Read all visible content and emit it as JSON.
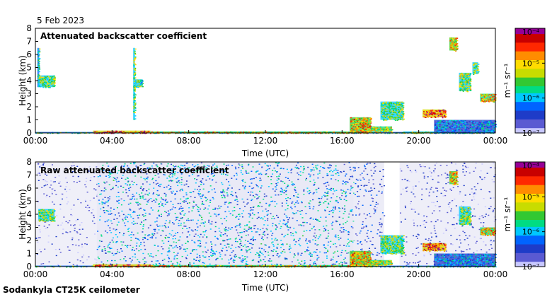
{
  "date": "5 Feb 2023",
  "footer": "Sodankyla CT25K ceilometer",
  "colorscale": [
    "#ffffff",
    "#c8c8ff",
    "#5a5ad2",
    "#1e3cc8",
    "#0064ff",
    "#00c8ff",
    "#00dc82",
    "#32c832",
    "#c8dc00",
    "#ffdc00",
    "#ff8c00",
    "#ff2800",
    "#c80000",
    "#960096"
  ],
  "chart_data": [
    {
      "type": "heatmap",
      "title": "Attenuated backscatter coefficient",
      "xlabel": "Time (UTC)",
      "ylabel": "Height (km)",
      "xticks": [
        "00:00",
        "04:00",
        "08:00",
        "12:00",
        "16:00",
        "20:00",
        "00:00"
      ],
      "yticks": [
        "0",
        "1",
        "2",
        "3",
        "4",
        "5",
        "6",
        "7",
        "8"
      ],
      "xlim": [
        0,
        24
      ],
      "ylim": [
        0,
        8
      ],
      "colorbar": {
        "label": "m⁻¹ sr⁻¹",
        "ticks": [
          "10⁻⁴",
          "10⁻⁵",
          "10⁻⁶",
          "10⁻⁷"
        ],
        "range": [
          -7,
          -4
        ],
        "scale": "log"
      },
      "noise_background": false,
      "features": [
        {
          "t0": 0.0,
          "t1": 24.0,
          "h0": 0.0,
          "h1": 0.08,
          "level": 0.45
        },
        {
          "t0": 3.0,
          "t1": 6.0,
          "h0": 0.0,
          "h1": 0.18,
          "level": 0.88
        },
        {
          "t0": 6.0,
          "t1": 16.4,
          "h0": 0.0,
          "h1": 0.12,
          "level": 0.7
        },
        {
          "t0": 0.1,
          "t1": 0.2,
          "h0": 3.5,
          "h1": 6.5,
          "level": 0.45
        },
        {
          "t0": 0.15,
          "t1": 1.0,
          "h0": 3.5,
          "h1": 4.4,
          "level": 0.55
        },
        {
          "t0": 5.1,
          "t1": 5.2,
          "h0": 1.0,
          "h1": 6.5,
          "level": 0.55
        },
        {
          "t0": 5.2,
          "t1": 5.6,
          "h0": 3.5,
          "h1": 4.1,
          "level": 0.5
        },
        {
          "t0": 16.4,
          "t1": 17.5,
          "h0": 0.0,
          "h1": 1.2,
          "level": 0.72
        },
        {
          "t0": 17.5,
          "t1": 18.6,
          "h0": 0.1,
          "h1": 0.5,
          "level": 0.62
        },
        {
          "t0": 18.0,
          "t1": 19.2,
          "h0": 1.0,
          "h1": 2.4,
          "level": 0.55
        },
        {
          "t0": 19.2,
          "t1": 21.0,
          "h0": 0.0,
          "h1": 0.12,
          "level": 0.6
        },
        {
          "t0": 20.2,
          "t1": 21.4,
          "h0": 1.2,
          "h1": 1.8,
          "level": 0.85
        },
        {
          "t0": 20.8,
          "t1": 24.0,
          "h0": 0.0,
          "h1": 1.0,
          "level": 0.32
        },
        {
          "t0": 21.6,
          "t1": 22.0,
          "h0": 6.3,
          "h1": 7.3,
          "level": 0.72
        },
        {
          "t0": 22.1,
          "t1": 22.7,
          "h0": 3.2,
          "h1": 4.6,
          "level": 0.58
        },
        {
          "t0": 22.8,
          "t1": 23.1,
          "h0": 4.5,
          "h1": 5.4,
          "level": 0.55
        },
        {
          "t0": 23.2,
          "t1": 24.0,
          "h0": 2.4,
          "h1": 3.0,
          "level": 0.7
        }
      ]
    },
    {
      "type": "heatmap",
      "title": "Raw attenuated backscatter coefficient",
      "xlabel": "Time (UTC)",
      "ylabel": "Height (km)",
      "xticks": [
        "00:00",
        "04:00",
        "08:00",
        "12:00",
        "16:00",
        "20:00",
        "00:00"
      ],
      "yticks": [
        "0",
        "1",
        "2",
        "3",
        "4",
        "5",
        "6",
        "7",
        "8"
      ],
      "xlim": [
        0,
        24
      ],
      "ylim": [
        0,
        8
      ],
      "colorbar": {
        "label": "m⁻¹ sr⁻¹",
        "ticks": [
          "10⁻⁴",
          "10⁻⁵",
          "10⁻⁶",
          "10⁻⁷"
        ],
        "range": [
          -7,
          -4
        ],
        "scale": "log"
      },
      "noise_background": true,
      "noise_segments": [
        {
          "t0": 0.0,
          "t1": 3.2,
          "level": 0.12
        },
        {
          "t0": 3.2,
          "t1": 16.6,
          "level": 0.28
        },
        {
          "t0": 16.6,
          "t1": 18.2,
          "level": 0.18
        },
        {
          "t0": 18.2,
          "t1": 19.0,
          "level": 0.0
        },
        {
          "t0": 19.0,
          "t1": 24.0,
          "level": 0.14
        }
      ],
      "features": [
        {
          "t0": 0.0,
          "t1": 24.0,
          "h0": 0.0,
          "h1": 0.08,
          "level": 0.45
        },
        {
          "t0": 3.0,
          "t1": 6.0,
          "h0": 0.0,
          "h1": 0.18,
          "level": 0.88
        },
        {
          "t0": 6.0,
          "t1": 16.4,
          "h0": 0.0,
          "h1": 0.12,
          "level": 0.7
        },
        {
          "t0": 0.15,
          "t1": 1.0,
          "h0": 3.5,
          "h1": 4.4,
          "level": 0.55
        },
        {
          "t0": 16.4,
          "t1": 17.5,
          "h0": 0.0,
          "h1": 1.2,
          "level": 0.72
        },
        {
          "t0": 17.5,
          "t1": 18.6,
          "h0": 0.1,
          "h1": 0.5,
          "level": 0.62
        },
        {
          "t0": 18.0,
          "t1": 19.2,
          "h0": 1.0,
          "h1": 2.4,
          "level": 0.55
        },
        {
          "t0": 20.2,
          "t1": 21.4,
          "h0": 1.2,
          "h1": 1.8,
          "level": 0.85
        },
        {
          "t0": 20.8,
          "t1": 24.0,
          "h0": 0.0,
          "h1": 1.0,
          "level": 0.32
        },
        {
          "t0": 21.6,
          "t1": 22.0,
          "h0": 6.3,
          "h1": 7.3,
          "level": 0.72
        },
        {
          "t0": 22.1,
          "t1": 22.7,
          "h0": 3.2,
          "h1": 4.6,
          "level": 0.58
        },
        {
          "t0": 23.2,
          "t1": 24.0,
          "h0": 2.4,
          "h1": 3.0,
          "level": 0.7
        }
      ]
    }
  ]
}
